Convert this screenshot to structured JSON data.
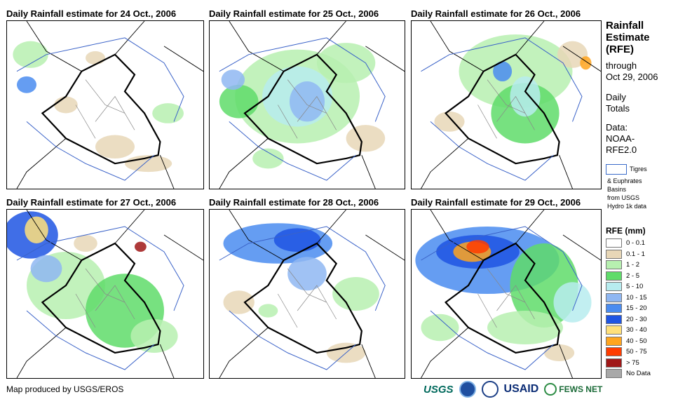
{
  "panels": [
    {
      "title": "Daily Rainfall estimate for 24 Oct., 2006"
    },
    {
      "title": "Daily Rainfall estimate for 25 Oct., 2006"
    },
    {
      "title": "Daily Rainfall estimate for 26 Oct., 2006"
    },
    {
      "title": "Daily Rainfall estimate for 27 Oct., 2006"
    },
    {
      "title": "Daily Rainfall estimate for 28 Oct., 2006"
    },
    {
      "title": "Daily Rainfall estimate for 29 Oct., 2006"
    }
  ],
  "legend": {
    "title": [
      "Rainfall",
      "Estimate",
      "(RFE)"
    ],
    "through": [
      "through",
      "Oct 29, 2006"
    ],
    "daily": [
      "Daily",
      "Totals"
    ],
    "data": [
      "Data:",
      "NOAA-",
      "RFE2.0"
    ],
    "basin_label": "Tigres",
    "basin_note": [
      "& Euphrates",
      "Basins",
      "from USGS",
      "Hydro 1k data"
    ],
    "rfe_title": "RFE (mm)",
    "classes": [
      {
        "label": "0 - 0.1",
        "color": "#ffffff"
      },
      {
        "label": "0.1 - 1",
        "color": "#e8d7b7"
      },
      {
        "label": "1 - 2",
        "color": "#b7f0b0"
      },
      {
        "label": "2 - 5",
        "color": "#5fdc6a"
      },
      {
        "label": "5 - 10",
        "color": "#b7ecef"
      },
      {
        "label": "10 - 15",
        "color": "#8fb7f2"
      },
      {
        "label": "15 - 20",
        "color": "#4a8cf0"
      },
      {
        "label": "20 - 30",
        "color": "#1f55e3"
      },
      {
        "label": "30 - 40",
        "color": "#ffe07a"
      },
      {
        "label": "40 - 50",
        "color": "#ffa51e"
      },
      {
        "label": "50 - 75",
        "color": "#ff3c00"
      },
      {
        "label": "> 75",
        "color": "#a01818"
      },
      {
        "label": "No Data",
        "color": "#a8a8a8"
      }
    ]
  },
  "footer": {
    "produced_by": "Map produced by USGS/EROS",
    "logos": {
      "usgs": "USGS",
      "usaid": "USAID",
      "fews": "FEWS NET"
    }
  }
}
